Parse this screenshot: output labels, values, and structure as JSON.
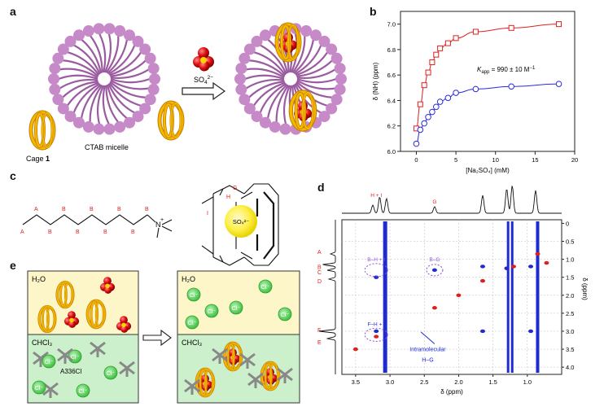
{
  "panels": {
    "a": {
      "label": "a",
      "cage_label": "Cage",
      "cage_number": "1",
      "micelle_label": "CTAB micelle",
      "anion_label": "SO",
      "anion_sub": "4",
      "anion_sup": "2−"
    },
    "b": {
      "label": "b",
      "ylabel": "δ (NH) (ppm)",
      "xlabel": "[Na₂SO₄] (mM)",
      "annotation_k": "K",
      "annotation_sub": "app",
      "annotation_value": " = 990 ± 10 M",
      "annotation_sup": "−1"
    },
    "c": {
      "label": "c",
      "chain_letters_top": [
        "A",
        "B",
        "B",
        "B",
        "B",
        "B",
        "B",
        "C",
        "E"
      ],
      "chain_letters_bottom": [
        "A",
        "B",
        "B",
        "B",
        "B",
        "B",
        "B",
        "C",
        "D",
        "F"
      ],
      "nitrogen": "N",
      "charge": "+",
      "cage_letters": [
        "G",
        "H",
        "I"
      ],
      "sulfate": "SO₄²⁻"
    },
    "d": {
      "label": "d",
      "xlabel": "δ (ppm)",
      "ylabel": "δ (ppm)",
      "x_ticks": [
        "3.5",
        "3.0",
        "2.5",
        "2.0",
        "1.5",
        "1.0"
      ],
      "y_ticks": [
        "0",
        "0.5",
        "1.0",
        "1.5",
        "2.0",
        "2.5",
        "3.0",
        "3.5",
        "4.0"
      ],
      "top_peaks": [
        "H + I",
        "G"
      ],
      "side_peaks": [
        "A",
        "B",
        "C",
        "D",
        "F",
        "E"
      ],
      "cross_labels": [
        "B–H + I",
        "B–G",
        "F–H + I"
      ],
      "intra_label_1": "Intramolecular",
      "intra_label_2": "H–G"
    },
    "e": {
      "label": "e",
      "water": "H₂O",
      "chloroform": "CHCl₃",
      "extractant": "A336Cl",
      "chloride": "Cl⁻"
    }
  },
  "colors": {
    "gold": "#f0a500",
    "gold_dark": "#c47d00",
    "purple": "#c78ac9",
    "purple_dark": "#9b5ba0",
    "red_series": "#e02020",
    "blue_series": "#2a2adb",
    "water_bg": "#fdf6c8",
    "chcl3_bg": "#cdf0cc",
    "chloride_green": "#5bd35b"
  },
  "chart_data": {
    "type": "scatter",
    "xlabel": "[Na₂SO₄] (mM)",
    "ylabel": "δ (NH) (ppm)",
    "xlim": [
      -2,
      20
    ],
    "ylim": [
      6.0,
      7.1
    ],
    "x_ticks": [
      0,
      5,
      10,
      15,
      20
    ],
    "y_ticks": [
      6.0,
      6.2,
      6.4,
      6.6,
      6.8,
      7.0
    ],
    "grid": false,
    "series": [
      {
        "marker": "square",
        "color": "#e02020",
        "x": [
          0,
          0.5,
          1,
          1.5,
          2,
          2.5,
          3,
          4,
          5,
          7.5,
          12,
          18
        ],
        "y": [
          6.18,
          6.37,
          6.52,
          6.62,
          6.7,
          6.76,
          6.81,
          6.85,
          6.89,
          6.94,
          6.97,
          7.0
        ]
      },
      {
        "marker": "circle",
        "color": "#2a2adb",
        "x": [
          0,
          0.5,
          1,
          1.5,
          2,
          2.5,
          3,
          4,
          5,
          7.5,
          12,
          18
        ],
        "y": [
          6.06,
          6.17,
          6.22,
          6.27,
          6.31,
          6.35,
          6.39,
          6.42,
          6.46,
          6.49,
          6.51,
          6.53
        ]
      }
    ]
  }
}
